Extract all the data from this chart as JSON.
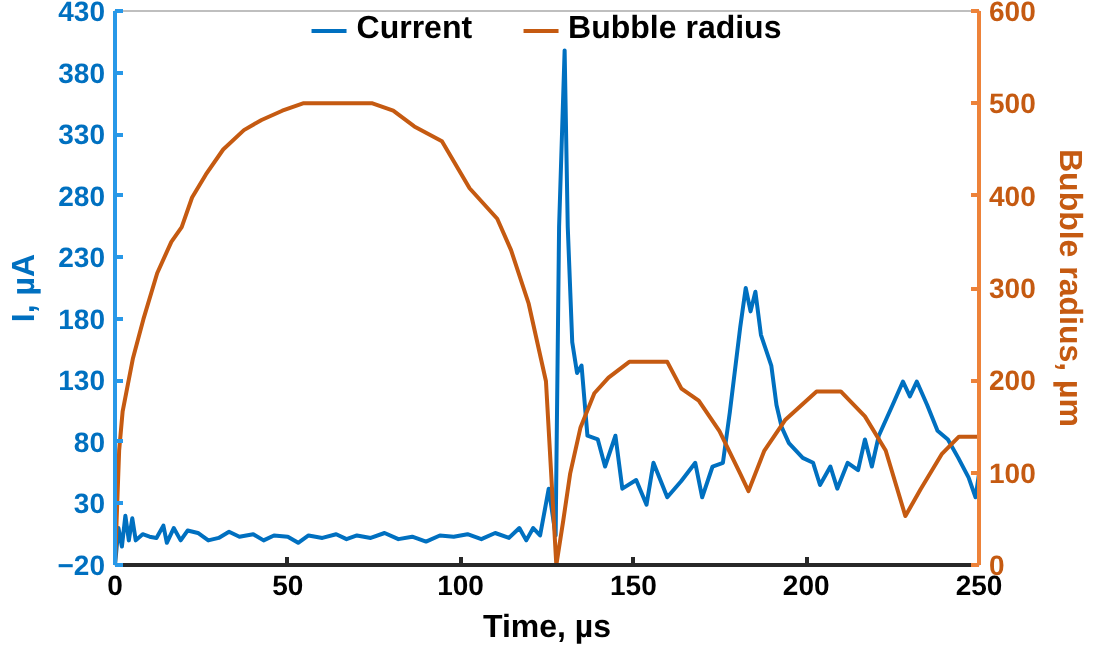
{
  "chart_data": {
    "type": "line",
    "xlabel": "Time, µs",
    "ylabel": "I, µA",
    "y2label": "Bubble radius, µm",
    "xlim": [
      0,
      250
    ],
    "xticks": [
      0,
      50,
      100,
      150,
      200,
      250
    ],
    "ylim": [
      -20,
      430
    ],
    "yticks": [
      -20,
      30,
      80,
      130,
      180,
      230,
      280,
      330,
      380,
      430
    ],
    "y2lim": [
      0,
      600
    ],
    "y2ticks": [
      0,
      100,
      200,
      300,
      400,
      500,
      600
    ],
    "grid": false,
    "legend": "top",
    "marker": "none",
    "line_style": "solid",
    "series": [
      {
        "name": "Current",
        "color": "#0070c0",
        "x": [
          0,
          1,
          2,
          3,
          4,
          5,
          6,
          8,
          10,
          12,
          14,
          15,
          17,
          19,
          21,
          24,
          27,
          30,
          33,
          36,
          40,
          43,
          46,
          50,
          53,
          56,
          60,
          64,
          67,
          70,
          74,
          78,
          82,
          86,
          90,
          94,
          98,
          102,
          106,
          110,
          114,
          117,
          119,
          121,
          123,
          125.5,
          127.5,
          128.5,
          130.1,
          131,
          132.3,
          133.7,
          135,
          136.7,
          139.7,
          141.8,
          144.8,
          146.8,
          150.8,
          153.8,
          155.8,
          159.8,
          163.8,
          167.9,
          169.9,
          172.9,
          175.9,
          177.9,
          180.9,
          182.5,
          183.9,
          185.3,
          186.9,
          189.9,
          191.4,
          192.9,
          195,
          199,
          202,
          204,
          207,
          209,
          212,
          215,
          217,
          219,
          221,
          225,
          228,
          230,
          232,
          235,
          238,
          241,
          244,
          247,
          249,
          250
        ],
        "values": [
          -20,
          10,
          -5,
          20,
          0,
          18,
          0,
          5,
          3,
          2,
          12,
          -2,
          10,
          0,
          8,
          6,
          0,
          2,
          7,
          3,
          5,
          0,
          4,
          3,
          -2,
          4,
          2,
          5,
          1,
          4,
          2,
          6,
          1,
          3,
          -1,
          4,
          3,
          5,
          1,
          6,
          2,
          10,
          0,
          10,
          4,
          42,
          4,
          255,
          398,
          255,
          161,
          136,
          142,
          85,
          82,
          60,
          85,
          42,
          49,
          29,
          63,
          35,
          48,
          63,
          35,
          60,
          63,
          104,
          173,
          205,
          186,
          202,
          167,
          142,
          110,
          92,
          79,
          67,
          63,
          45,
          60,
          42,
          63,
          57,
          82,
          60,
          85,
          110,
          129,
          117,
          129,
          110,
          89,
          82,
          67,
          51,
          35,
          54
        ]
      },
      {
        "name": "Bubble radius",
        "color": "#c55a11",
        "axis": "y2",
        "x": [
          0,
          1.2,
          2.2,
          5.2,
          8.2,
          12.2,
          16.3,
          19.3,
          22.3,
          26.3,
          31.3,
          37.3,
          42.4,
          48.4,
          54.4,
          74.5,
          80.5,
          86.6,
          94.6,
          102.6,
          110.6,
          114.6,
          119.7,
          124.7,
          127.7,
          129.7,
          131.7,
          134.7,
          138.7,
          142.8,
          148.8,
          159.8,
          163.9,
          168.9,
          174.9,
          180.9,
          183.3,
          187.9,
          193.9,
          203,
          210,
          217,
          223,
          228.7,
          233.1,
          239.2,
          244.2,
          250
        ],
        "values": [
          0,
          124,
          166,
          224,
          266,
          316,
          350,
          366,
          398,
          423,
          450,
          471,
          482,
          492,
          500,
          500,
          492,
          475,
          459,
          408,
          375,
          341,
          283,
          199,
          0,
          48,
          99,
          149,
          186,
          203,
          220,
          220,
          191,
          178,
          145,
          99,
          80,
          124,
          157,
          188,
          188,
          161,
          124,
          53,
          82,
          120,
          139,
          139
        ]
      }
    ]
  }
}
